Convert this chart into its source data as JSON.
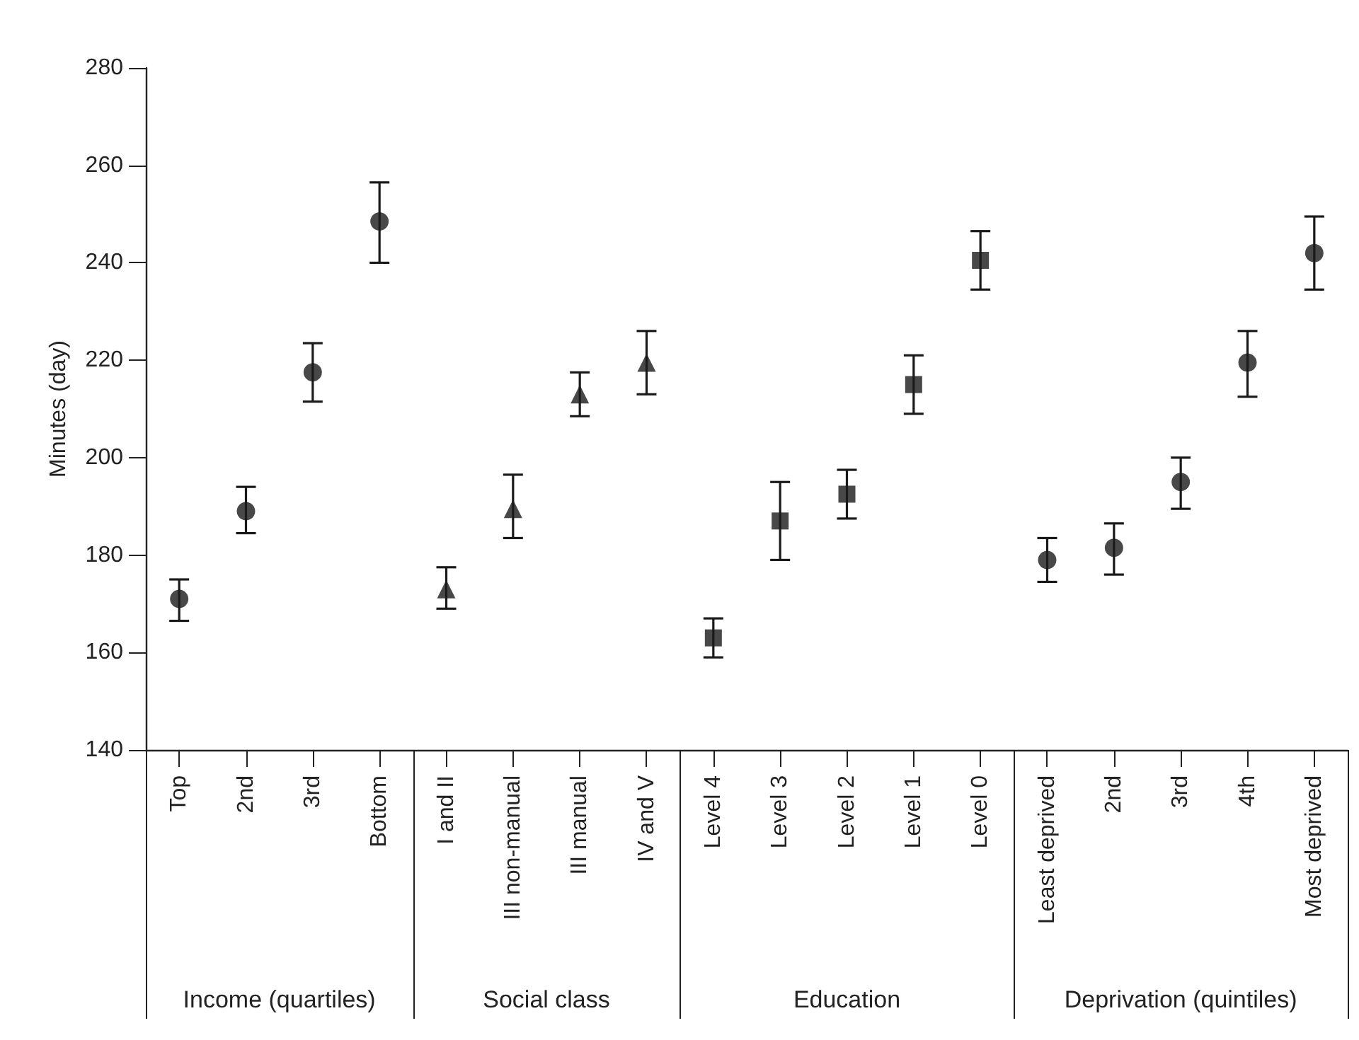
{
  "chart_data": {
    "type": "scatter",
    "ylabel": "Minutes (day)",
    "categories": [
      "Top",
      "2nd",
      "3rd",
      "Bottom",
      "I and II",
      "III non-manual",
      "III manual",
      "IV and V",
      "Level 4",
      "Level 3",
      "Level 2",
      "Level 1",
      "Level 0",
      "Least deprived",
      "2nd",
      "3rd",
      "4th",
      "Most deprived"
    ],
    "series": [
      {
        "color": "#1a1a1a",
        "marker": "circle",
        "values": [
          171,
          189,
          217.5,
          248.5,
          null,
          null,
          null,
          null,
          null,
          null,
          null,
          null,
          null,
          null,
          null,
          null,
          null,
          null
        ],
        "errors": [
          [
            166.5,
            175
          ],
          [
            184.5,
            194
          ],
          [
            211.5,
            223.5
          ],
          [
            240,
            256.5
          ],
          null,
          null,
          null,
          null,
          null,
          null,
          null,
          null,
          null,
          null,
          null,
          null,
          null,
          null
        ]
      },
      {
        "color": "#1a1a1a",
        "marker": "triangle",
        "values": [
          null,
          null,
          null,
          null,
          173,
          189.5,
          213,
          219.5,
          null,
          null,
          null,
          null,
          null,
          null,
          null,
          null,
          null,
          null
        ],
        "errors": [
          null,
          null,
          null,
          null,
          [
            169,
            177.5
          ],
          [
            183.5,
            196.5
          ],
          [
            208.5,
            217.5
          ],
          [
            213,
            226
          ],
          null,
          null,
          null,
          null,
          null,
          null,
          null,
          null,
          null,
          null
        ]
      },
      {
        "color": "#1a1a1a",
        "marker": "square",
        "values": [
          null,
          null,
          null,
          null,
          null,
          null,
          null,
          null,
          163,
          187,
          192.5,
          215,
          240.5,
          null,
          null,
          null,
          null,
          null
        ],
        "errors": [
          null,
          null,
          null,
          null,
          null,
          null,
          null,
          null,
          [
            159,
            167
          ],
          [
            179,
            195
          ],
          [
            187.5,
            197.5
          ],
          [
            209,
            221
          ],
          [
            234.5,
            246.5
          ],
          null,
          null,
          null,
          null,
          null
        ]
      },
      {
        "color": "#1a1a1a",
        "marker": "circle",
        "values": [
          null,
          null,
          null,
          null,
          null,
          null,
          null,
          null,
          null,
          null,
          null,
          null,
          null,
          179,
          181.5,
          195,
          219.5,
          242
        ],
        "errors": [
          null,
          null,
          null,
          null,
          null,
          null,
          null,
          null,
          null,
          null,
          null,
          null,
          null,
          [
            174.5,
            183.5
          ],
          [
            176,
            186.5
          ],
          [
            189.5,
            200
          ],
          [
            212.5,
            226
          ],
          [
            234.5,
            249.5
          ]
        ]
      }
    ],
    "ylim": [
      140,
      280
    ],
    "yticks": [
      140,
      160,
      180,
      200,
      220,
      240,
      260,
      280
    ],
    "grid": false,
    "annotations": [
      "Income (quartiles)",
      "Social class",
      "Education",
      "Deprivation (quintiles)"
    ]
  }
}
